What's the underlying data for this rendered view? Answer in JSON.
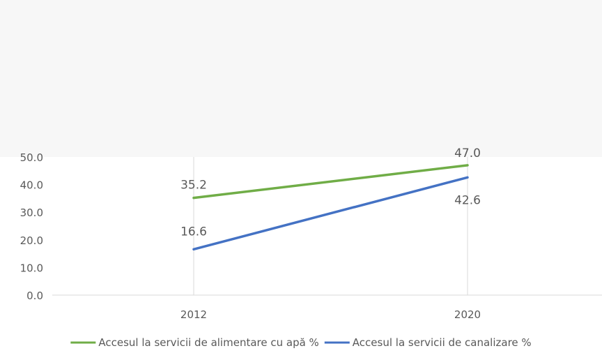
{
  "chart_data": {
    "type": "line",
    "title": "",
    "xlabel": "",
    "ylabel": "",
    "categories": [
      "2012",
      "2020"
    ],
    "y_ticks": [
      "0.0",
      "10.0",
      "20.0",
      "30.0",
      "40.0",
      "50.0"
    ],
    "ylim": [
      0,
      50
    ],
    "grid": "vertical lines at categories",
    "legend_position": "bottom",
    "series": [
      {
        "name": "Accesul la servicii de alimentare cu apă %",
        "values": [
          35.2,
          47.0
        ],
        "labels": [
          "35.2",
          "47.0"
        ],
        "color": "#70ad47"
      },
      {
        "name": "Accesul la servicii de canalizare %",
        "values": [
          16.6,
          42.6
        ],
        "labels": [
          "16.6",
          "42.6"
        ],
        "color": "#4472c4"
      }
    ]
  }
}
